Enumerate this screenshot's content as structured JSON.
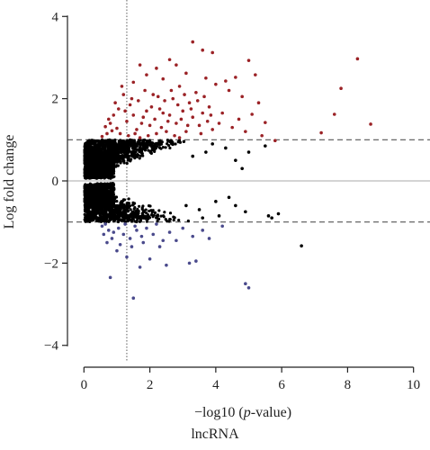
{
  "chart_data": {
    "type": "scatter",
    "title": "",
    "xlabel_prefix": "−log10 (",
    "xlabel_italic": "p",
    "xlabel_suffix": "-value)",
    "ylabel": "Log fold change",
    "caption": "lncRNA",
    "xlim": [
      -0.5,
      10.5
    ],
    "ylim": [
      -4.4,
      4.4
    ],
    "x_ticks": [
      0,
      2,
      4,
      6,
      8,
      10
    ],
    "y_ticks": [
      -4,
      -2,
      0,
      2,
      4
    ],
    "hlines": [
      {
        "y": 1,
        "style": "dashed",
        "color": "#555555"
      },
      {
        "y": -1,
        "style": "dashed",
        "color": "#555555"
      },
      {
        "y": 0,
        "style": "solid",
        "color": "#bbbbbb"
      }
    ],
    "vlines": [
      {
        "x": 1.3,
        "style": "dotted",
        "color": "#777777"
      }
    ],
    "grid": false,
    "colors": {
      "up": "#9b2226",
      "down": "#4a4a8c",
      "ns": "#000000"
    },
    "series": [
      {
        "group": "up",
        "color": "#9b2226",
        "points": [
          [
            8.3,
            2.97
          ],
          [
            7.8,
            2.25
          ],
          [
            7.6,
            1.62
          ],
          [
            8.7,
            1.38
          ],
          [
            7.2,
            1.17
          ],
          [
            5.8,
            0.98
          ],
          [
            3.3,
            3.38
          ],
          [
            3.6,
            3.18
          ],
          [
            3.9,
            3.12
          ],
          [
            5.0,
            2.93
          ],
          [
            5.2,
            2.58
          ],
          [
            4.6,
            2.52
          ],
          [
            4.3,
            2.43
          ],
          [
            2.6,
            2.95
          ],
          [
            2.8,
            2.82
          ],
          [
            1.7,
            2.82
          ],
          [
            2.2,
            2.74
          ],
          [
            3.1,
            2.62
          ],
          [
            3.7,
            2.5
          ],
          [
            4.0,
            2.35
          ],
          [
            4.4,
            2.2
          ],
          [
            4.8,
            2.05
          ],
          [
            5.3,
            1.9
          ],
          [
            3.4,
            2.15
          ],
          [
            2.9,
            2.3
          ],
          [
            2.4,
            2.48
          ],
          [
            1.9,
            2.58
          ],
          [
            1.5,
            2.4
          ],
          [
            1.2,
            2.1
          ],
          [
            4.2,
            1.65
          ],
          [
            4.7,
            1.5
          ],
          [
            5.1,
            1.62
          ],
          [
            5.5,
            1.42
          ],
          [
            3.8,
            1.8
          ],
          [
            3.2,
            1.9
          ],
          [
            2.7,
            2.0
          ],
          [
            2.1,
            2.1
          ],
          [
            1.4,
            1.85
          ],
          [
            0.9,
            1.6
          ],
          [
            1.0,
            1.28
          ],
          [
            0.8,
            1.4
          ],
          [
            0.7,
            1.15
          ],
          [
            0.65,
            1.32
          ],
          [
            0.55,
            1.08
          ],
          [
            1.1,
            1.15
          ],
          [
            1.3,
            1.45
          ],
          [
            1.6,
            1.25
          ],
          [
            1.8,
            1.55
          ],
          [
            2.0,
            1.35
          ],
          [
            2.3,
            1.75
          ],
          [
            2.5,
            1.2
          ],
          [
            2.6,
            1.6
          ],
          [
            2.8,
            1.4
          ],
          [
            3.0,
            1.7
          ],
          [
            3.1,
            1.2
          ],
          [
            3.3,
            1.55
          ],
          [
            3.5,
            1.35
          ],
          [
            3.6,
            1.65
          ],
          [
            3.9,
            1.25
          ],
          [
            4.1,
            1.4
          ],
          [
            4.5,
            1.3
          ],
          [
            4.9,
            1.2
          ],
          [
            5.4,
            1.1
          ],
          [
            0.95,
            1.9
          ],
          [
            1.15,
            2.3
          ],
          [
            1.25,
            1.7
          ],
          [
            1.45,
            2.0
          ],
          [
            1.55,
            1.15
          ],
          [
            1.65,
            1.95
          ],
          [
            1.75,
            1.4
          ],
          [
            1.85,
            2.2
          ],
          [
            1.95,
            1.1
          ],
          [
            2.05,
            1.8
          ],
          [
            2.15,
            1.5
          ],
          [
            2.25,
            2.05
          ],
          [
            2.35,
            1.3
          ],
          [
            2.45,
            1.95
          ],
          [
            2.55,
            1.45
          ],
          [
            2.65,
            2.2
          ],
          [
            2.75,
            1.1
          ],
          [
            2.85,
            1.85
          ],
          [
            2.95,
            1.5
          ],
          [
            3.05,
            2.1
          ],
          [
            3.15,
            1.35
          ],
          [
            3.25,
            1.75
          ],
          [
            3.45,
            1.95
          ],
          [
            3.55,
            1.15
          ],
          [
            3.65,
            2.05
          ],
          [
            3.75,
            1.45
          ],
          [
            3.85,
            1.6
          ],
          [
            0.75,
            1.5
          ],
          [
            0.85,
            1.22
          ],
          [
            1.05,
            1.75
          ],
          [
            1.35,
            1.1
          ],
          [
            1.5,
            1.6
          ],
          [
            1.7,
            1.05
          ],
          [
            1.9,
            1.7
          ],
          [
            2.2,
            1.15
          ],
          [
            2.4,
            1.65
          ],
          [
            2.9,
            1.05
          ]
        ]
      },
      {
        "group": "down",
        "color": "#4a4a8c",
        "points": [
          [
            0.8,
            -2.35
          ],
          [
            1.5,
            -2.85
          ],
          [
            5.0,
            -2.6
          ],
          [
            4.9,
            -2.5
          ],
          [
            1.7,
            -2.1
          ],
          [
            2.5,
            -2.05
          ],
          [
            3.2,
            -2.0
          ],
          [
            3.4,
            -1.95
          ],
          [
            2.0,
            -1.9
          ],
          [
            1.3,
            -1.85
          ],
          [
            1.0,
            -1.7
          ],
          [
            0.7,
            -1.5
          ],
          [
            0.6,
            -1.3
          ],
          [
            0.9,
            -1.25
          ],
          [
            1.1,
            -1.55
          ],
          [
            1.4,
            -1.4
          ],
          [
            1.6,
            -1.2
          ],
          [
            1.8,
            -1.5
          ],
          [
            2.1,
            -1.3
          ],
          [
            2.3,
            -1.6
          ],
          [
            2.6,
            -1.25
          ],
          [
            2.8,
            -1.45
          ],
          [
            3.0,
            -1.15
          ],
          [
            3.3,
            -1.35
          ],
          [
            3.6,
            -1.2
          ],
          [
            4.2,
            -1.1
          ],
          [
            0.55,
            -1.1
          ],
          [
            0.65,
            -1.05
          ],
          [
            0.75,
            -1.2
          ],
          [
            0.85,
            -1.4
          ],
          [
            1.05,
            -1.15
          ],
          [
            1.2,
            -1.3
          ],
          [
            1.25,
            -1.05
          ],
          [
            1.45,
            -1.6
          ],
          [
            1.55,
            -1.1
          ],
          [
            1.75,
            -1.35
          ],
          [
            1.9,
            -1.15
          ],
          [
            2.2,
            -1.05
          ],
          [
            2.4,
            -1.45
          ],
          [
            3.8,
            -1.4
          ]
        ]
      },
      {
        "group": "ns",
        "color": "#000000",
        "note": "dense non-significant cloud between fold change -1 and 1",
        "points": [
          [
            6.6,
            -1.58
          ],
          [
            5.7,
            -0.9
          ],
          [
            5.6,
            -0.85
          ],
          [
            5.9,
            -0.8
          ],
          [
            4.6,
            -0.6
          ],
          [
            4.4,
            -0.4
          ],
          [
            4.8,
            0.3
          ],
          [
            4.6,
            0.5
          ],
          [
            5.0,
            0.7
          ],
          [
            5.5,
            0.85
          ],
          [
            4.9,
            -0.75
          ],
          [
            4.3,
            0.8
          ],
          [
            4.1,
            -0.85
          ],
          [
            3.9,
            0.9
          ],
          [
            4.0,
            -0.5
          ],
          [
            3.7,
            0.7
          ],
          [
            3.5,
            -0.7
          ],
          [
            3.6,
            -0.9
          ],
          [
            3.3,
            0.6
          ],
          [
            3.1,
            -0.6
          ]
        ]
      }
    ]
  }
}
